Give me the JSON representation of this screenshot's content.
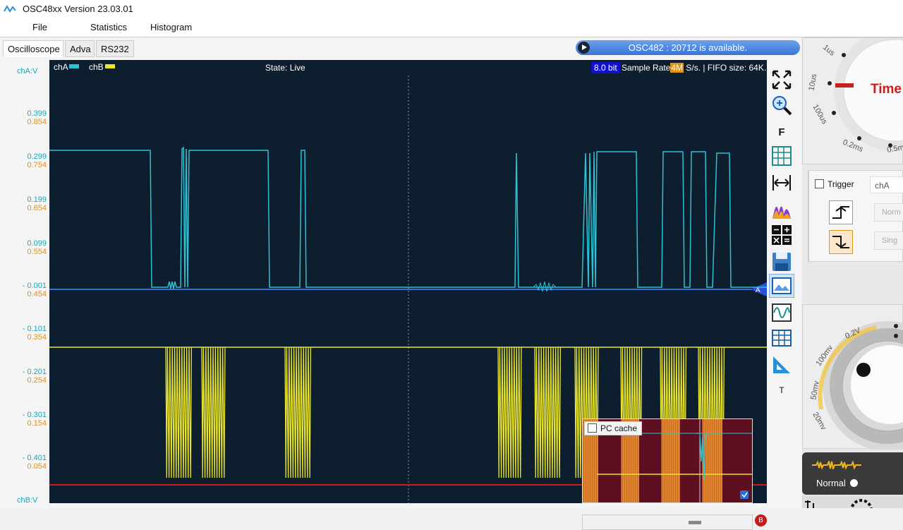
{
  "window": {
    "title": "OSC48xx  Version 23.03.01"
  },
  "menu": {
    "items": [
      "File",
      "Statistics",
      "Histogram"
    ]
  },
  "tabs": [
    "Oscilloscope",
    "Adva",
    "RS232"
  ],
  "status_banner": "OSC482 : 20712 is available.",
  "scope": {
    "channels": [
      "chA",
      "chB"
    ],
    "state": "State: Live",
    "bits": "8.0 bit",
    "sample_rate_prefix": "Sample Rate",
    "sample_rate_value": "4M",
    "sample_rate_suffix": " S/s. | FIFO size: 64K.",
    "marker_a": "A",
    "marker_b": "B"
  },
  "axis": {
    "top_label": "chA:V",
    "bottom_label": "chB:V",
    "ticks": [
      {
        "a": "0.399",
        "b": "0.854"
      },
      {
        "a": "0.299",
        "b": "0.754"
      },
      {
        "a": "0.199",
        "b": "0.654"
      },
      {
        "a": "0.099",
        "b": "0.554"
      },
      {
        "a": "- 0.001",
        "b": "0.454"
      },
      {
        "a": "- 0.101",
        "b": "0.354"
      },
      {
        "a": "- 0.201",
        "b": "0.254"
      },
      {
        "a": "- 0.301",
        "b": "0.154"
      },
      {
        "a": "- 0.401",
        "b": "0.054"
      }
    ]
  },
  "tools": {
    "f_label": "F",
    "t_label": "T"
  },
  "cache": {
    "label": "PC cache"
  },
  "timebase": {
    "dial_labels": [
      "1us",
      "10us",
      "100us",
      "0.2ms",
      "0.5m"
    ],
    "title": "Time"
  },
  "trigger": {
    "label": "Trigger",
    "source": "chA",
    "mode_normal": "Norm",
    "mode_single": "Sing"
  },
  "voltage": {
    "dial_labels": [
      "0.2V",
      "100mv",
      "50mv",
      "20mv"
    ]
  },
  "mode": {
    "label": "Normal"
  },
  "colors": {
    "chA": "#2bc3d6",
    "chB": "#ebe62a",
    "scope_bg": "#0d1e2e",
    "baseline_a": "#3b6fe0",
    "baseline_b": "#d11a1a"
  }
}
